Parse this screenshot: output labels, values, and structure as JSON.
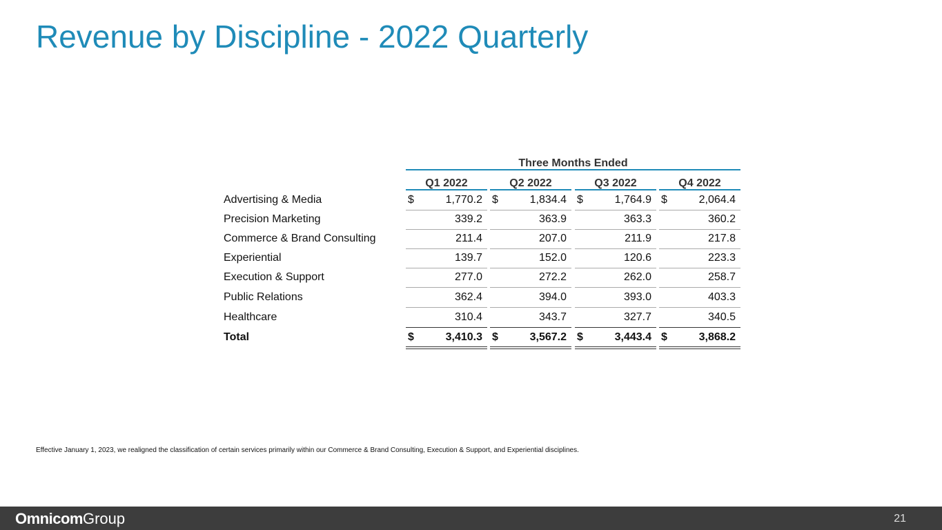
{
  "header": {
    "title": "Revenue by Discipline - 2022 Quarterly"
  },
  "table": {
    "group_header": "Three Months Ended",
    "columns": [
      "Q1 2022",
      "Q2 2022",
      "Q3 2022",
      "Q4 2022"
    ],
    "rows": [
      {
        "label": "Advertising & Media",
        "currency": "$",
        "values": [
          "1,770.2",
          "1,834.4",
          "1,764.9",
          "2,064.4"
        ]
      },
      {
        "label": "Precision Marketing",
        "values": [
          "339.2",
          "363.9",
          "363.3",
          "360.2"
        ]
      },
      {
        "label": "Commerce & Brand Consulting",
        "values": [
          "211.4",
          "207.0",
          "211.9",
          "217.8"
        ]
      },
      {
        "label": "Experiential",
        "values": [
          "139.7",
          "152.0",
          "120.6",
          "223.3"
        ]
      },
      {
        "label": "Execution & Support",
        "values": [
          "277.0",
          "272.2",
          "262.0",
          "258.7"
        ]
      },
      {
        "label": "Public Relations",
        "values": [
          "362.4",
          "394.0",
          "393.0",
          "403.3"
        ]
      },
      {
        "label": "Healthcare",
        "values": [
          "310.4",
          "343.7",
          "327.7",
          "340.5"
        ]
      },
      {
        "label": "Total",
        "currency": "$",
        "total": true,
        "values": [
          "3,410.3",
          "3,567.2",
          "3,443.4",
          "3,868.2"
        ]
      }
    ]
  },
  "footnote": "Effective January 1, 2023, we realigned the classification of certain services primarily within our Commerce & Brand Consulting, Execution & Support, and Experiential disciplines.",
  "footer": {
    "logo_bold": "Omnicom",
    "logo_light": "Group",
    "page_number": "21"
  }
}
